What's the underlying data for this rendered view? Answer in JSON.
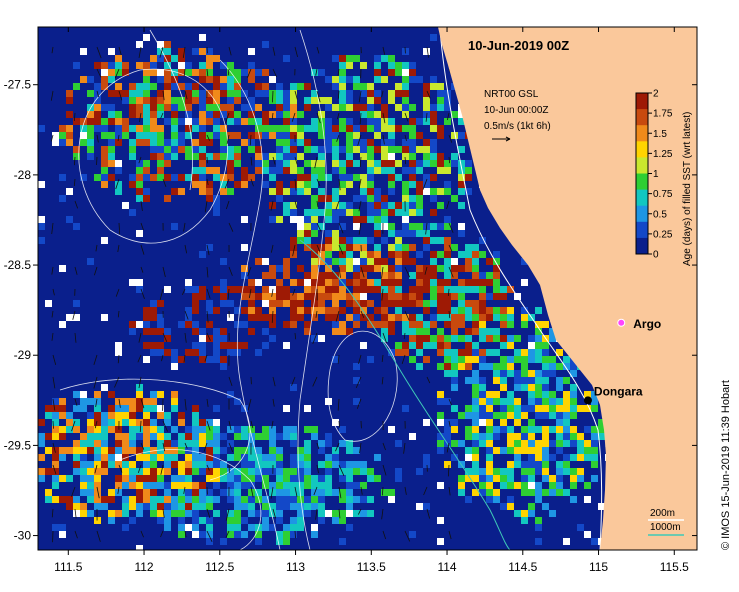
{
  "title": "10-Jun-2019 00Z",
  "annotation": {
    "line1": "NRT00 GSL",
    "line2": "10-Jun 00:00Z",
    "line3": "0.5m/s (1kt 6h)"
  },
  "axes": {
    "x_ticks": [
      "111.5",
      "112",
      "112.5",
      "113",
      "113.5",
      "114",
      "114.5",
      "115",
      "115.5"
    ],
    "y_ticks": [
      "-27.5",
      "-28",
      "-28.5",
      "-29",
      "-29.5",
      "-30"
    ],
    "x_range": [
      111.3,
      115.65
    ],
    "y_range": [
      -30.08,
      -27.18
    ]
  },
  "colorbar": {
    "label": "Age (days) of filled SST (wrt latest)",
    "ticks": [
      "2",
      "1.75",
      "1.5",
      "1.25",
      "1",
      "0.75",
      "0.5",
      "0.25",
      "0"
    ],
    "colors": [
      "#9e1a05",
      "#c84a0e",
      "#f08a1a",
      "#ffd400",
      "#c9e82e",
      "#2ecf33",
      "#12c7c0",
      "#1e96e4",
      "#1348c8",
      "#0a1f8c"
    ]
  },
  "places": {
    "argo": "Argo",
    "dongara": "Dongara",
    "dongara_lon": 114.93,
    "dongara_lat": -29.25,
    "argo_lon": 115.15,
    "argo_lat": -28.82
  },
  "legend": {
    "iso200": "200m",
    "iso1000": "1000m"
  },
  "credit": "© IMOS 15-Jun-2019 11:39 Hobart",
  "colors": {
    "land": "#fac89b",
    "deep": "#0a1f8c",
    "contour": "#ffffff",
    "iso200": "#ffffff",
    "iso1000": "#3ec9b8"
  }
}
